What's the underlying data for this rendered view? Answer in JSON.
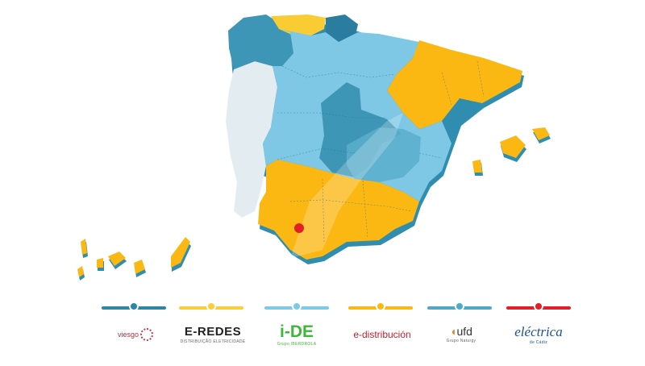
{
  "map": {
    "colors": {
      "orange": "#FBB813",
      "light_blue": "#7EC8E6",
      "mid_blue": "#5AAFCB",
      "teal": "#3E96B6",
      "dark_teal": "#2A7D9E",
      "portugal": "#E3EDF1",
      "yellow": "#F8CC32",
      "shadow": "#2F8DB0",
      "marker": "#E41E26"
    },
    "marker_region": "Cádiz"
  },
  "legend": [
    {
      "color": "#2D86A6",
      "company": "Viesgo"
    },
    {
      "color": "#F8CF3A",
      "company": "E-REDES"
    },
    {
      "color": "#7CC9E8",
      "company": "i-DE"
    },
    {
      "color": "#FBB813",
      "company": "e-distribución"
    },
    {
      "color": "#4FA9C6",
      "company": "ufd"
    },
    {
      "color": "#E41E26",
      "company": "Eléctrica de Cádiz"
    }
  ],
  "logos": {
    "viesgo": {
      "text": "viesgo"
    },
    "eredes": {
      "text": "E-REDES",
      "sub": "DISTRIBUIÇÃO ELETRICIDADE"
    },
    "ide": {
      "text": "i-DE",
      "sub": "Grupo IBERDROLA"
    },
    "edistribucion": {
      "text": "e-distribución"
    },
    "ufd": {
      "text": "ufd",
      "sub": "Grupo Naturgy"
    },
    "electrica": {
      "text": "eléctrica",
      "sub": "de Cádiz"
    }
  }
}
